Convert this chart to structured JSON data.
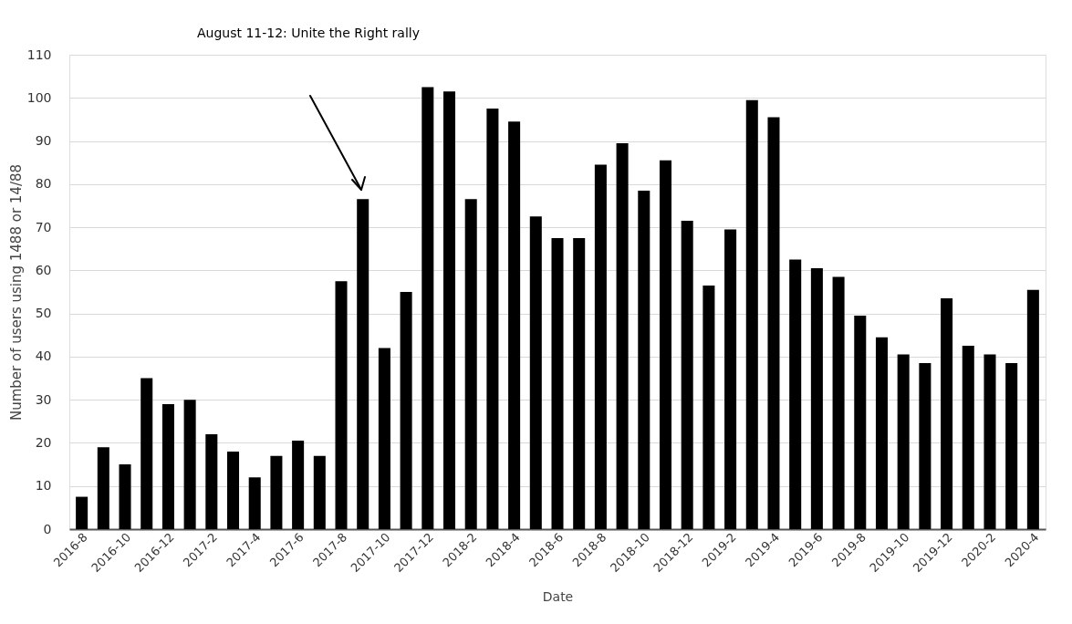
{
  "chart_data": {
    "type": "bar",
    "xlabel": "Date",
    "ylabel": "Number of users using 1488 or 14/88",
    "categories": [
      "2016-8",
      null,
      "2016-10",
      null,
      "2016-12",
      null,
      "2017-2",
      null,
      "2017-4",
      null,
      "2017-6",
      null,
      "2017-8",
      null,
      "2017-10",
      null,
      "2017-12",
      null,
      "2018-2",
      null,
      "2018-4",
      null,
      "2018-6",
      null,
      "2018-8",
      null,
      "2018-10",
      null,
      "2018-12",
      null,
      "2019-2",
      null,
      "2019-4",
      null,
      "2019-6",
      null,
      "2019-8",
      null,
      "2019-10",
      null,
      "2019-12",
      null,
      "2020-2",
      null,
      "2020-4"
    ],
    "values": [
      7.5,
      19,
      15,
      35,
      29,
      30,
      22,
      18,
      12,
      17,
      20.5,
      17,
      57.5,
      76.5,
      42,
      55,
      102.5,
      101.5,
      76.5,
      97.5,
      94.5,
      72.5,
      67.5,
      67.5,
      84.5,
      89.5,
      78.5,
      85.5,
      71.5,
      56.5,
      69.5,
      99.5,
      95.5,
      62.5,
      60.5,
      58.5,
      49.5,
      44.5,
      40.5,
      38.5,
      53.5,
      42.5,
      40.5,
      38.5,
      55.5
    ],
    "color": "#000000",
    "ylim": [
      0,
      110
    ],
    "yticks": [
      0,
      10,
      20,
      30,
      40,
      50,
      60,
      70,
      80,
      90,
      100,
      110
    ],
    "grid": "y",
    "annotations": [
      "August 11-12: Unite the Right rally"
    ]
  }
}
